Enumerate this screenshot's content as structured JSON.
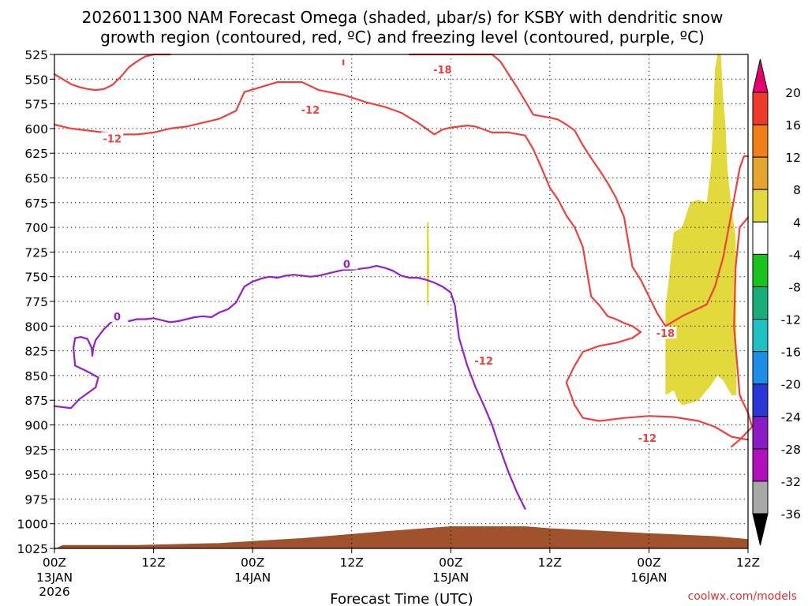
{
  "chart_data": {
    "type": "time-height cross-section",
    "title_line1": "2026011300 NAM Forecast Omega (shaded, µbar/s) for KSBY with dendritic snow",
    "title_line2": "growth region (contoured, red, ºC) and freezing level (contoured, purple, ºC)",
    "xlabel": "Forecast Time (UTC)",
    "x_range_hours": [
      0,
      84
    ],
    "x_ticks": [
      {
        "hour": 0,
        "time": "00Z",
        "date": "13JAN",
        "year": "2026"
      },
      {
        "hour": 12,
        "time": "12Z",
        "date": "",
        "year": ""
      },
      {
        "hour": 24,
        "time": "00Z",
        "date": "14JAN",
        "year": ""
      },
      {
        "hour": 36,
        "time": "12Z",
        "date": "",
        "year": ""
      },
      {
        "hour": 48,
        "time": "00Z",
        "date": "15JAN",
        "year": ""
      },
      {
        "hour": 60,
        "time": "12Z",
        "date": "",
        "year": ""
      },
      {
        "hour": 72,
        "time": "00Z",
        "date": "16JAN",
        "year": ""
      },
      {
        "hour": 84,
        "time": "12Z",
        "date": "",
        "year": ""
      }
    ],
    "y_range_hPa": [
      1025,
      525
    ],
    "y_ticks": [
      "525",
      "550",
      "575",
      "600",
      "625",
      "650",
      "675",
      "700",
      "725",
      "750",
      "775",
      "800",
      "825",
      "850",
      "875",
      "900",
      "925",
      "950",
      "975",
      "1000",
      "1025"
    ],
    "colorbar": {
      "labels": [
        "20",
        "16",
        "12",
        "8",
        "4",
        "-4",
        "-8",
        "-12",
        "-16",
        "-20",
        "-24",
        "-28",
        "-32",
        "-36"
      ],
      "colors": [
        "#e8006e",
        "#ee3a2a",
        "#ef7f16",
        "#e3a52c",
        "#e2d93c",
        "#ffffff",
        "#19c21c",
        "#16ad76",
        "#1ec1c1",
        "#1d8ee8",
        "#2a36d6",
        "#8a1bc5",
        "#b20fbd",
        "#a8a8a8",
        "#000000"
      ]
    },
    "series": [
      {
        "name": "-12 °C isotherm (upper)",
        "color": "#f0403c",
        "label": "-12",
        "points": [
          [
            0,
            596
          ],
          [
            2,
            600
          ],
          [
            4,
            602
          ],
          [
            6,
            604
          ],
          [
            8,
            606
          ],
          [
            10,
            606
          ],
          [
            12,
            604
          ],
          [
            14,
            600
          ],
          [
            16,
            598
          ],
          [
            18,
            594
          ],
          [
            20,
            590
          ],
          [
            22,
            582
          ],
          [
            23,
            563
          ],
          [
            25,
            558
          ],
          [
            27,
            553
          ],
          [
            30,
            553
          ],
          [
            32,
            561
          ],
          [
            35,
            566
          ],
          [
            38,
            574
          ],
          [
            40,
            578
          ],
          [
            42,
            584
          ],
          [
            44,
            594
          ],
          [
            46,
            606
          ],
          [
            47,
            601
          ],
          [
            48,
            599
          ],
          [
            50,
            597
          ],
          [
            51,
            598
          ],
          [
            53,
            604
          ],
          [
            55,
            604
          ],
          [
            57,
            607
          ],
          [
            58,
            621
          ],
          [
            59,
            640
          ],
          [
            60,
            660
          ],
          [
            61,
            672
          ],
          [
            62,
            688
          ],
          [
            63,
            700
          ],
          [
            64,
            720
          ],
          [
            65,
            770
          ],
          [
            66,
            779
          ],
          [
            67,
            790
          ],
          [
            68,
            793
          ],
          [
            69,
            797
          ],
          [
            70,
            800
          ],
          [
            71,
            806
          ],
          [
            70,
            812
          ],
          [
            68,
            817
          ],
          [
            66,
            820
          ],
          [
            64,
            826
          ],
          [
            63,
            840
          ],
          [
            62,
            857
          ],
          [
            63,
            880
          ],
          [
            64,
            893
          ],
          [
            66,
            896
          ],
          [
            69,
            893
          ],
          [
            72,
            891
          ],
          [
            75,
            892
          ],
          [
            78,
            896
          ],
          [
            80,
            902
          ],
          [
            82,
            912
          ],
          [
            84,
            915
          ]
        ]
      },
      {
        "name": "-18 °C isotherm",
        "color": "#f0403c",
        "label": "-18",
        "points": [
          [
            43,
            501
          ],
          [
            44,
            496
          ],
          [
            45,
            494
          ],
          [
            46,
            495
          ],
          [
            47,
            496
          ],
          [
            48,
            497
          ],
          [
            50,
            500
          ],
          [
            52,
            504
          ],
          [
            53,
            512
          ],
          [
            54,
            532
          ],
          [
            55,
            545
          ],
          [
            56,
            558
          ],
          [
            57,
            572
          ],
          [
            58,
            586
          ],
          [
            60,
            589
          ],
          [
            61,
            591
          ],
          [
            62,
            596
          ],
          [
            63,
            602
          ],
          [
            64,
            617
          ],
          [
            65,
            630
          ],
          [
            66,
            642
          ],
          [
            67,
            655
          ],
          [
            68,
            670
          ],
          [
            69,
            690
          ],
          [
            70,
            740
          ],
          [
            71,
            753
          ],
          [
            72,
            770
          ],
          [
            73,
            787
          ],
          [
            74,
            800
          ],
          [
            76,
            790
          ],
          [
            77,
            786
          ],
          [
            79,
            778
          ],
          [
            80,
            760
          ],
          [
            81,
            730
          ],
          [
            82,
            685
          ],
          [
            83,
            640
          ],
          [
            83.5,
            628
          ],
          [
            84,
            628
          ]
        ]
      },
      {
        "name": "-12 °C isotherm (lower right)",
        "color": "#f0403c",
        "label": "",
        "points": [
          [
            84,
            690
          ],
          [
            83,
            700
          ],
          [
            82.5,
            740
          ],
          [
            82.3,
            800
          ],
          [
            83,
            870
          ],
          [
            84,
            888
          ],
          [
            84.5,
            902
          ],
          [
            83,
            915
          ],
          [
            82,
            922
          ]
        ]
      },
      {
        "name": "-12 °C isotherm (top)",
        "color": "#f0403c",
        "label": "",
        "points": [
          [
            0,
            545
          ],
          [
            1,
            550
          ],
          [
            2,
            555
          ],
          [
            3,
            558
          ],
          [
            4,
            560
          ],
          [
            5,
            561
          ],
          [
            6,
            560
          ],
          [
            7,
            556
          ],
          [
            8,
            548
          ],
          [
            9,
            538
          ],
          [
            10,
            532
          ],
          [
            11,
            527
          ],
          [
            12,
            521
          ],
          [
            13,
            520
          ],
          [
            14,
            517
          ]
        ]
      },
      {
        "name": "0 °C freezing level",
        "color": "#9420c8",
        "label": "0",
        "points": [
          [
            0,
            881
          ],
          [
            1,
            882
          ],
          [
            2,
            883
          ],
          [
            3,
            874
          ],
          [
            4,
            868
          ],
          [
            5,
            862
          ],
          [
            5.3,
            852
          ],
          [
            4,
            846
          ],
          [
            2.5,
            840
          ],
          [
            2.3,
            822
          ],
          [
            2.5,
            812
          ],
          [
            3.2,
            811
          ],
          [
            4,
            813
          ],
          [
            4.5,
            822
          ],
          [
            4.6,
            830
          ],
          [
            4.7,
            822
          ],
          [
            5,
            814
          ],
          [
            6,
            803
          ],
          [
            7,
            795
          ],
          [
            8,
            793
          ],
          [
            9,
            795
          ],
          [
            10,
            793
          ],
          [
            11,
            793
          ],
          [
            12,
            792
          ],
          [
            13,
            794
          ],
          [
            14,
            796
          ],
          [
            15,
            795
          ],
          [
            16,
            793
          ],
          [
            17,
            791
          ],
          [
            18,
            790
          ],
          [
            19,
            791
          ],
          [
            20,
            786
          ],
          [
            21,
            783
          ],
          [
            22,
            776
          ],
          [
            23,
            760
          ],
          [
            24,
            755
          ],
          [
            25,
            752
          ],
          [
            26,
            750
          ],
          [
            27,
            751
          ],
          [
            28,
            749
          ],
          [
            29,
            748
          ],
          [
            30,
            749
          ],
          [
            31,
            750
          ],
          [
            32,
            749
          ],
          [
            33,
            747
          ],
          [
            34,
            745
          ],
          [
            35,
            743
          ],
          [
            36,
            743
          ],
          [
            37,
            742
          ],
          [
            38,
            741
          ],
          [
            39,
            739
          ],
          [
            40,
            741
          ],
          [
            41,
            744
          ],
          [
            42,
            749
          ],
          [
            43,
            751
          ],
          [
            44,
            751
          ],
          [
            45,
            753
          ],
          [
            46,
            756
          ],
          [
            47,
            760
          ],
          [
            48,
            766
          ],
          [
            48.5,
            779
          ],
          [
            49,
            812
          ],
          [
            50,
            840
          ],
          [
            51,
            862
          ],
          [
            52,
            880
          ],
          [
            53,
            900
          ],
          [
            54,
            925
          ],
          [
            55,
            948
          ],
          [
            56,
            968
          ],
          [
            57,
            985
          ]
        ]
      }
    ],
    "shaded_regions": [
      {
        "name": "omega 4 to 8 band (left sliver)",
        "color": "#e2d93c",
        "points": [
          [
            45.1,
            695
          ],
          [
            45.3,
            695
          ],
          [
            45.4,
            740
          ],
          [
            45.3,
            780
          ],
          [
            45.1,
            775
          ]
        ]
      },
      {
        "name": "omega 4 to 8 band (right column)",
        "color": "#e2d93c",
        "points": [
          [
            74,
            780
          ],
          [
            74.3,
            760
          ],
          [
            75,
            705
          ],
          [
            76,
            700
          ],
          [
            77,
            675
          ],
          [
            78,
            672
          ],
          [
            79,
            675
          ],
          [
            79.5,
            640
          ],
          [
            79.7,
            605
          ],
          [
            80,
            540
          ],
          [
            80.3,
            525
          ],
          [
            80.7,
            525
          ],
          [
            81,
            570
          ],
          [
            81.3,
            600
          ],
          [
            81.5,
            640
          ],
          [
            82,
            680
          ],
          [
            82.5,
            710
          ],
          [
            82.6,
            870
          ],
          [
            82,
            870
          ],
          [
            81,
            855
          ],
          [
            80.3,
            850
          ],
          [
            79.5,
            860
          ],
          [
            78,
            875
          ],
          [
            77,
            878
          ],
          [
            76,
            880
          ],
          [
            75.5,
            875
          ],
          [
            75,
            865
          ],
          [
            74,
            870
          ]
        ]
      }
    ],
    "terrain": {
      "name": "surface terrain",
      "color": "#a0522d",
      "points": [
        [
          0,
          1026
        ],
        [
          1,
          1022
        ],
        [
          10,
          1022
        ],
        [
          20,
          1020
        ],
        [
          30,
          1015
        ],
        [
          40,
          1008
        ],
        [
          48,
          1003
        ],
        [
          57,
          1003
        ],
        [
          60,
          1005
        ],
        [
          72,
          1010
        ],
        [
          80,
          1013
        ],
        [
          84,
          1016
        ]
      ]
    }
  },
  "watermark": "coolwx.com/models"
}
